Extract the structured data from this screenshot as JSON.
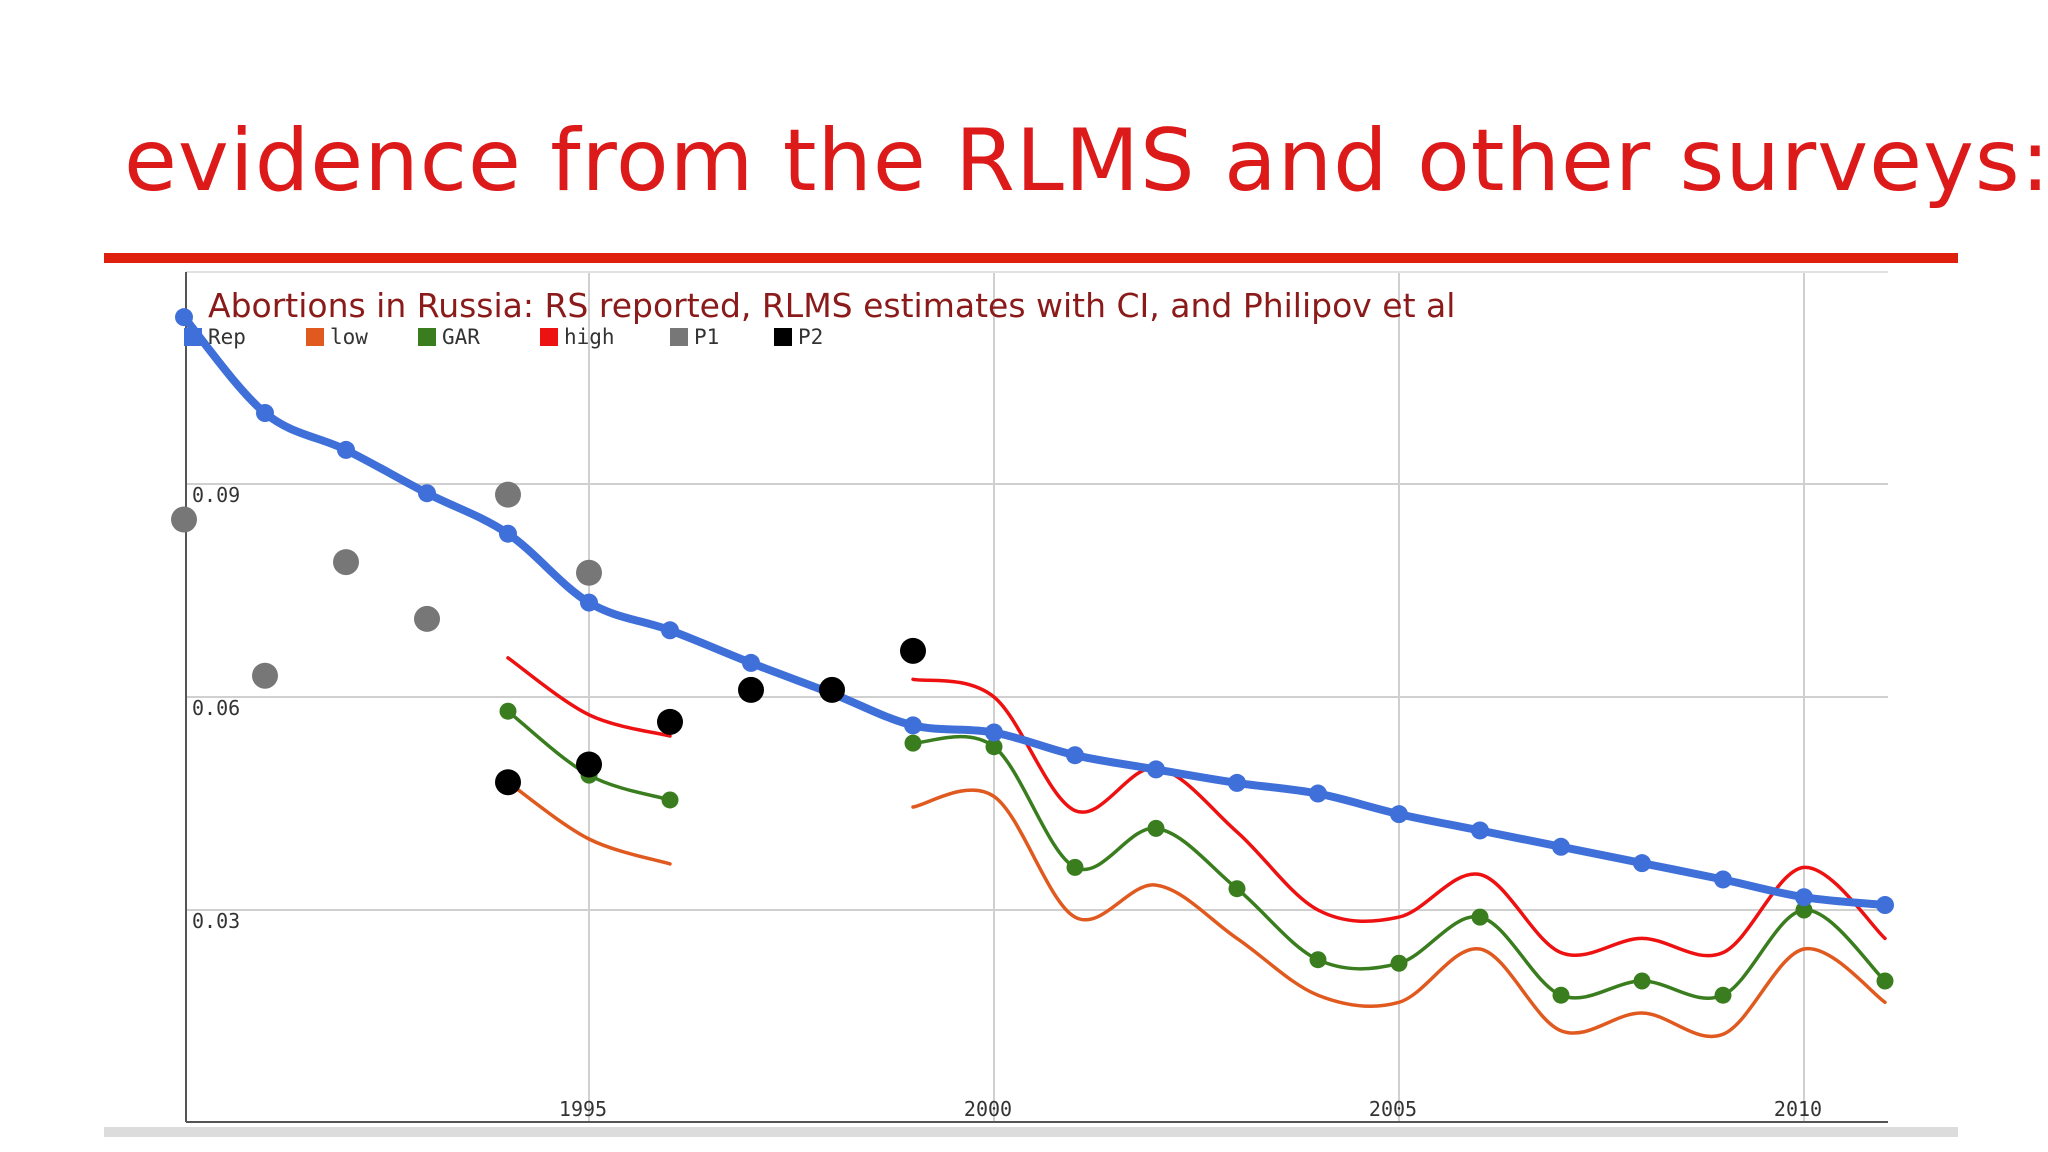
{
  "slide": {
    "title": "evidence from the RLMS and other surveys:"
  },
  "chart_data": {
    "type": "line",
    "title": "Abortions in Russia: RS reported, RLMS estimates with CI, and Philipov et al",
    "xlabel": "",
    "ylabel": "",
    "xlim": [
      1990,
      2011
    ],
    "ylim": [
      0.0,
      0.12
    ],
    "x_ticks": [
      1995,
      2000,
      2005,
      2010
    ],
    "x_tick_labels": [
      "1995",
      "2000",
      "2005",
      "2010"
    ],
    "y_ticks": [
      0.03,
      0.06,
      0.09
    ],
    "y_tick_labels": [
      "0.03",
      "0.06",
      "0.09"
    ],
    "grid": true,
    "legend_position": "top-left",
    "series": [
      {
        "name": "Rep",
        "style": "line-markers",
        "color": "#3f6fd8",
        "segments": [
          [
            [
              1990,
              0.1135
            ],
            [
              1991,
              0.1
            ],
            [
              1992,
              0.0948
            ],
            [
              1993,
              0.0887
            ],
            [
              1994,
              0.083
            ],
            [
              1995,
              0.0733
            ],
            [
              1996,
              0.0694
            ],
            [
              1997,
              0.0648
            ],
            [
              1998,
              0.0605
            ],
            [
              1999,
              0.056
            ],
            [
              2000,
              0.055
            ],
            [
              2001,
              0.0518
            ],
            [
              2002,
              0.0498
            ],
            [
              2003,
              0.0479
            ],
            [
              2004,
              0.0464
            ],
            [
              2005,
              0.0435
            ],
            [
              2006,
              0.0412
            ],
            [
              2007,
              0.0389
            ],
            [
              2008,
              0.0366
            ],
            [
              2009,
              0.0343
            ],
            [
              2010,
              0.0318
            ],
            [
              2011,
              0.0307
            ]
          ]
        ]
      },
      {
        "name": "low",
        "style": "line",
        "color": "#e05a20",
        "segments": [
          [
            [
              1994,
              0.048
            ],
            [
              1995,
              0.04
            ],
            [
              1996,
              0.0365
            ]
          ],
          [
            [
              1999,
              0.0445
            ],
            [
              2000,
              0.046
            ],
            [
              2001,
              0.029
            ],
            [
              2002,
              0.0335
            ],
            [
              2003,
              0.026
            ],
            [
              2004,
              0.018
            ],
            [
              2005,
              0.017
            ],
            [
              2006,
              0.0245
            ],
            [
              2007,
              0.013
            ],
            [
              2008,
              0.0155
            ],
            [
              2009,
              0.0125
            ],
            [
              2010,
              0.0245
            ],
            [
              2011,
              0.017
            ]
          ]
        ]
      },
      {
        "name": "GAR",
        "style": "line-markers",
        "color": "#3a7d1e",
        "segments": [
          [
            [
              1994,
              0.058
            ],
            [
              1995,
              0.049
            ],
            [
              1996,
              0.0455
            ]
          ],
          [
            [
              1999,
              0.0535
            ],
            [
              2000,
              0.053
            ],
            [
              2001,
              0.036
            ],
            [
              2002,
              0.0415
            ],
            [
              2003,
              0.033
            ],
            [
              2004,
              0.023
            ],
            [
              2005,
              0.0225
            ],
            [
              2006,
              0.029
            ],
            [
              2007,
              0.018
            ],
            [
              2008,
              0.02
            ],
            [
              2009,
              0.018
            ],
            [
              2010,
              0.03
            ],
            [
              2011,
              0.02
            ]
          ]
        ]
      },
      {
        "name": "high",
        "style": "line",
        "color": "#ee1111",
        "segments": [
          [
            [
              1994,
              0.0655
            ],
            [
              1995,
              0.0575
            ],
            [
              1996,
              0.0545
            ]
          ],
          [
            [
              1999,
              0.0625
            ],
            [
              2000,
              0.06
            ],
            [
              2001,
              0.044
            ],
            [
              2002,
              0.05
            ],
            [
              2003,
              0.041
            ],
            [
              2004,
              0.03
            ],
            [
              2005,
              0.029
            ],
            [
              2006,
              0.035
            ],
            [
              2007,
              0.024
            ],
            [
              2008,
              0.026
            ],
            [
              2009,
              0.024
            ],
            [
              2010,
              0.036
            ],
            [
              2011,
              0.026
            ]
          ]
        ]
      },
      {
        "name": "P1",
        "style": "points",
        "color": "#777777",
        "points": [
          [
            1990,
            0.085
          ],
          [
            1991,
            0.063
          ],
          [
            1992,
            0.079
          ],
          [
            1993,
            0.071
          ],
          [
            1994,
            0.0885
          ],
          [
            1995,
            0.0775
          ]
        ]
      },
      {
        "name": "P2",
        "style": "points",
        "color": "#000000",
        "points": [
          [
            1994,
            0.048
          ],
          [
            1995,
            0.0505
          ],
          [
            1996,
            0.0565
          ],
          [
            1997,
            0.061
          ],
          [
            1998,
            0.061
          ],
          [
            1999,
            0.0665
          ]
        ]
      }
    ]
  }
}
